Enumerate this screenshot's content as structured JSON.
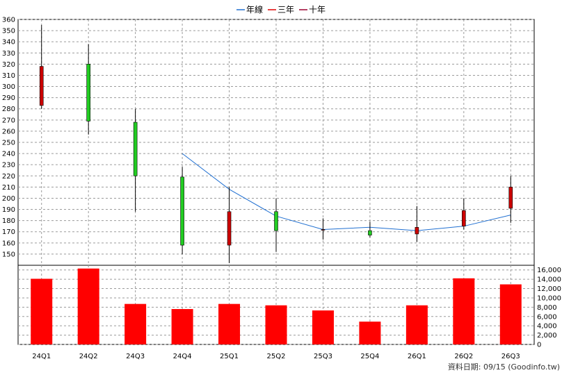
{
  "legend": [
    {
      "label": "年線",
      "color": "#1f6fd1"
    },
    {
      "label": "三年",
      "color": "#e00000"
    },
    {
      "label": "十年",
      "color": "#9b0030"
    }
  ],
  "footer": "資料日期: 09/15  (Goodinfo.tw)",
  "colors": {
    "up": "#cc0000",
    "down": "#22cc22",
    "volume": "#ff0000",
    "ma": "#1f6fd1",
    "grid": "#9a9a9a"
  },
  "chart_data": [
    {
      "type": "candlestick",
      "categories": [
        "24Q1",
        "24Q2",
        "24Q3",
        "24Q4",
        "25Q1",
        "25Q2",
        "25Q3",
        "25Q4",
        "26Q1",
        "26Q2",
        "26Q3"
      ],
      "ylim": [
        140,
        360
      ],
      "yticks": [
        150,
        160,
        170,
        180,
        190,
        200,
        210,
        220,
        230,
        240,
        250,
        260,
        270,
        280,
        290,
        300,
        310,
        320,
        330,
        340,
        350,
        360
      ],
      "grid": true,
      "candles": [
        {
          "open": 283,
          "close": 318,
          "high": 355,
          "low": 280
        },
        {
          "open": 320,
          "close": 269,
          "high": 338,
          "low": 257
        },
        {
          "open": 268,
          "close": 220,
          "high": 280,
          "low": 188
        },
        {
          "open": 219,
          "close": 158,
          "high": 228,
          "low": 150
        },
        {
          "open": 158,
          "close": 188,
          "high": 210,
          "low": 142
        },
        {
          "open": 188,
          "close": 171,
          "high": 200,
          "low": 152
        },
        {
          "open": 172,
          "close": 172,
          "high": 182,
          "low": 163
        },
        {
          "open": 171,
          "close": 167,
          "high": 179,
          "low": 165
        },
        {
          "open": 168,
          "close": 174,
          "high": 193,
          "low": 161
        },
        {
          "open": 175,
          "close": 189,
          "high": 200,
          "low": 172
        },
        {
          "open": 191,
          "close": 210,
          "high": 220,
          "low": 178
        }
      ],
      "series": [
        {
          "name": "年線",
          "values": [
            null,
            null,
            null,
            240,
            208,
            184,
            172,
            174,
            171,
            175,
            185
          ]
        }
      ]
    },
    {
      "type": "bar",
      "categories": [
        "24Q1",
        "24Q2",
        "24Q3",
        "24Q4",
        "25Q1",
        "25Q2",
        "25Q3",
        "25Q4",
        "26Q1",
        "26Q2",
        "26Q3"
      ],
      "values": [
        14100,
        16300,
        8700,
        7600,
        8700,
        8400,
        7300,
        4900,
        8400,
        14200,
        12900
      ],
      "ylim": [
        0,
        17000
      ],
      "yticks": [
        "0",
        "2,000",
        "4,000",
        "6,000",
        "8,000",
        "10,000",
        "12,000",
        "14,000",
        "16,000"
      ],
      "ytick_values": [
        0,
        2000,
        4000,
        6000,
        8000,
        10000,
        12000,
        14000,
        16000
      ],
      "grid": true
    }
  ]
}
